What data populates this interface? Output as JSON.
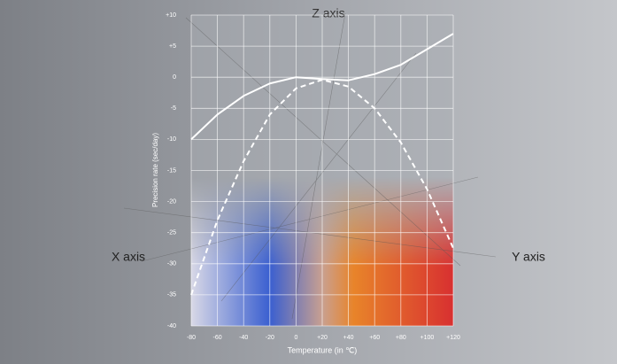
{
  "chart_data": {
    "type": "line",
    "x_label": "Temperature (in ℃)",
    "y_label": "Precision rate (sec/day)",
    "annotations": [
      "Z axis",
      "X axis",
      "Y axis"
    ],
    "x": [
      -80,
      -60,
      -40,
      -20,
      0,
      20,
      40,
      60,
      80,
      100,
      120
    ],
    "series": [
      {
        "color": "#ffffff",
        "linestyle": "solid",
        "values": [
          -10,
          -6,
          -3,
          -1,
          0,
          -0.3,
          -0.5,
          0.5,
          2,
          4.5,
          7
        ]
      },
      {
        "color": "#ffffff",
        "linestyle": "dashed",
        "values": [
          -35,
          -23,
          -13.5,
          -6,
          -1.8,
          -0.4,
          -1.5,
          -5,
          -10.5,
          -18,
          -27.5
        ]
      }
    ],
    "xlim": [
      -80,
      120
    ],
    "xticks": [
      -80,
      -60,
      -40,
      -20,
      0,
      {
        "value": 20,
        "label": "+20"
      },
      {
        "value": 40,
        "label": "+40"
      },
      {
        "value": 60,
        "label": "+60"
      },
      {
        "value": 80,
        "label": "+80"
      },
      {
        "value": 100,
        "label": "+100"
      },
      {
        "value": 120,
        "label": "+120"
      }
    ],
    "ylim": [
      -40,
      10
    ],
    "yticks": [
      {
        "value": 10,
        "label": "+10"
      },
      {
        "value": 5,
        "label": "+5"
      },
      0,
      -5,
      -10,
      -15,
      -20,
      -25,
      -30,
      -35,
      -40
    ],
    "grid": true
  }
}
